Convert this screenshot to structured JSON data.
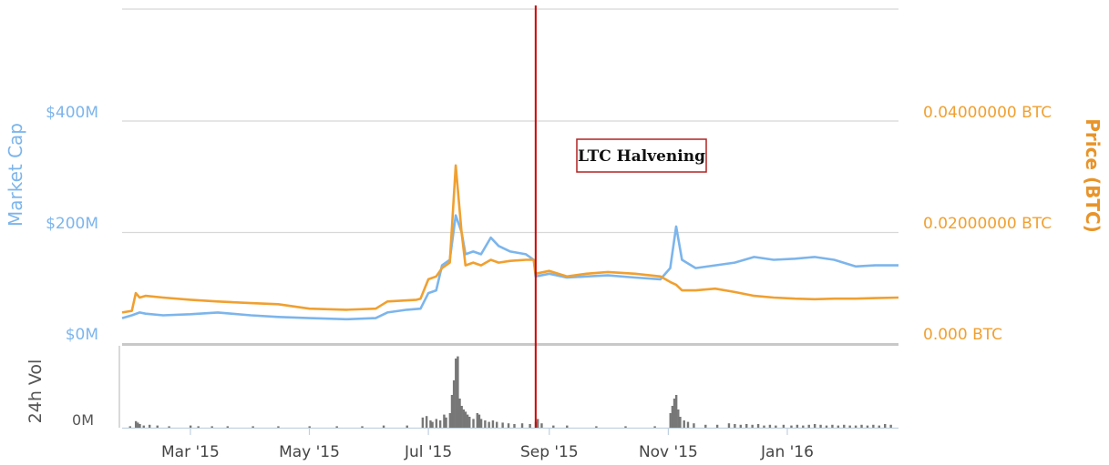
{
  "chart_data": {
    "type": "line",
    "xlim": [
      "2015-01-25",
      "2016-02-27"
    ],
    "x_ticks": [
      {
        "label": "Mar '15",
        "date": "2015-03-01"
      },
      {
        "label": "May '15",
        "date": "2015-05-01"
      },
      {
        "label": "Jul '15",
        "date": "2015-07-01"
      },
      {
        "label": "Sep '15",
        "date": "2015-09-01"
      },
      {
        "label": "Nov '15",
        "date": "2015-11-01"
      },
      {
        "label": "Jan '16",
        "date": "2016-01-01"
      }
    ],
    "y_left": {
      "title": "Market Cap",
      "range": [
        0,
        400
      ],
      "ticks": [
        {
          "label": "$0M",
          "value": 0
        },
        {
          "label": "$200M",
          "value": 200
        },
        {
          "label": "$400M",
          "value": 400
        }
      ]
    },
    "y_right": {
      "title": "Price (BTC)",
      "range": [
        0,
        0.04
      ],
      "ticks": [
        {
          "label": "0.000 BTC",
          "value": 0
        },
        {
          "label": "0.02000000 BTC",
          "value": 0.02
        },
        {
          "label": "0.04000000 BTC",
          "value": 0.04
        }
      ]
    },
    "y_volume": {
      "title": "24h Vol",
      "ticks": [
        {
          "label": "0M",
          "value": 0
        }
      ],
      "range": [
        0,
        100
      ]
    },
    "grid": true,
    "legend": "none",
    "annotation": {
      "label": "LTC Halvening",
      "date": "2015-08-25"
    },
    "series": [
      {
        "axis": "left",
        "color": "#7cb5ec",
        "points": [
          [
            "2015-01-25",
            45
          ],
          [
            "2015-01-30",
            50
          ],
          [
            "2015-02-03",
            55
          ],
          [
            "2015-02-06",
            53
          ],
          [
            "2015-02-15",
            50
          ],
          [
            "2015-03-01",
            52
          ],
          [
            "2015-03-15",
            55
          ],
          [
            "2015-03-22",
            53
          ],
          [
            "2015-04-01",
            50
          ],
          [
            "2015-04-15",
            47
          ],
          [
            "2015-05-01",
            45
          ],
          [
            "2015-05-20",
            43
          ],
          [
            "2015-06-04",
            45
          ],
          [
            "2015-06-10",
            55
          ],
          [
            "2015-06-20",
            60
          ],
          [
            "2015-06-27",
            62
          ],
          [
            "2015-07-01",
            90
          ],
          [
            "2015-07-05",
            95
          ],
          [
            "2015-07-08",
            140
          ],
          [
            "2015-07-12",
            150
          ],
          [
            "2015-07-15",
            230
          ],
          [
            "2015-07-18",
            200
          ],
          [
            "2015-07-20",
            160
          ],
          [
            "2015-07-24",
            165
          ],
          [
            "2015-07-28",
            160
          ],
          [
            "2015-08-02",
            190
          ],
          [
            "2015-08-06",
            175
          ],
          [
            "2015-08-12",
            165
          ],
          [
            "2015-08-20",
            160
          ],
          [
            "2015-08-24",
            150
          ],
          [
            "2015-08-25",
            120
          ],
          [
            "2015-09-01",
            125
          ],
          [
            "2015-09-10",
            118
          ],
          [
            "2015-09-20",
            120
          ],
          [
            "2015-10-01",
            122
          ],
          [
            "2015-10-15",
            118
          ],
          [
            "2015-10-28",
            115
          ],
          [
            "2015-11-02",
            135
          ],
          [
            "2015-11-05",
            210
          ],
          [
            "2015-11-08",
            150
          ],
          [
            "2015-11-15",
            135
          ],
          [
            "2015-11-25",
            140
          ],
          [
            "2015-12-05",
            145
          ],
          [
            "2015-12-15",
            155
          ],
          [
            "2015-12-25",
            150
          ],
          [
            "2016-01-05",
            152
          ],
          [
            "2016-01-15",
            155
          ],
          [
            "2016-01-25",
            150
          ],
          [
            "2016-02-05",
            138
          ],
          [
            "2016-02-15",
            140
          ],
          [
            "2016-02-27",
            140
          ]
        ]
      },
      {
        "axis": "right",
        "color": "#f0a030",
        "points": [
          [
            "2015-01-25",
            0.0055
          ],
          [
            "2015-01-30",
            0.0058
          ],
          [
            "2015-02-01",
            0.009
          ],
          [
            "2015-02-03",
            0.0082
          ],
          [
            "2015-02-06",
            0.0085
          ],
          [
            "2015-02-15",
            0.0082
          ],
          [
            "2015-03-01",
            0.0078
          ],
          [
            "2015-03-15",
            0.0075
          ],
          [
            "2015-04-01",
            0.0072
          ],
          [
            "2015-04-15",
            0.007
          ],
          [
            "2015-05-01",
            0.0062
          ],
          [
            "2015-05-20",
            0.006
          ],
          [
            "2015-06-04",
            0.0062
          ],
          [
            "2015-06-10",
            0.0075
          ],
          [
            "2015-06-25",
            0.0078
          ],
          [
            "2015-06-27",
            0.008
          ],
          [
            "2015-07-01",
            0.0115
          ],
          [
            "2015-07-05",
            0.012
          ],
          [
            "2015-07-08",
            0.0135
          ],
          [
            "2015-07-12",
            0.0145
          ],
          [
            "2015-07-15",
            0.032
          ],
          [
            "2015-07-18",
            0.02
          ],
          [
            "2015-07-20",
            0.014
          ],
          [
            "2015-07-24",
            0.0145
          ],
          [
            "2015-07-28",
            0.014
          ],
          [
            "2015-08-02",
            0.015
          ],
          [
            "2015-08-06",
            0.0145
          ],
          [
            "2015-08-12",
            0.0148
          ],
          [
            "2015-08-20",
            0.015
          ],
          [
            "2015-08-24",
            0.015
          ],
          [
            "2015-08-25",
            0.0125
          ],
          [
            "2015-09-01",
            0.013
          ],
          [
            "2015-09-10",
            0.012
          ],
          [
            "2015-09-20",
            0.0125
          ],
          [
            "2015-10-01",
            0.0128
          ],
          [
            "2015-10-15",
            0.0125
          ],
          [
            "2015-10-28",
            0.012
          ],
          [
            "2015-11-02",
            0.011
          ],
          [
            "2015-11-05",
            0.0105
          ],
          [
            "2015-11-08",
            0.0095
          ],
          [
            "2015-11-15",
            0.0095
          ],
          [
            "2015-11-25",
            0.0098
          ],
          [
            "2015-12-05",
            0.0092
          ],
          [
            "2015-12-15",
            0.0085
          ],
          [
            "2015-12-25",
            0.0082
          ],
          [
            "2016-01-05",
            0.008
          ],
          [
            "2016-01-15",
            0.0079
          ],
          [
            "2016-01-25",
            0.008
          ],
          [
            "2016-02-05",
            0.008
          ],
          [
            "2016-02-15",
            0.0081
          ],
          [
            "2016-02-27",
            0.0082
          ]
        ]
      }
    ],
    "volume": [
      [
        "2015-01-29",
        2
      ],
      [
        "2015-02-01",
        9
      ],
      [
        "2015-02-02",
        7
      ],
      [
        "2015-02-03",
        5
      ],
      [
        "2015-02-05",
        3
      ],
      [
        "2015-02-08",
        4
      ],
      [
        "2015-02-12",
        3
      ],
      [
        "2015-02-18",
        2
      ],
      [
        "2015-03-01",
        3
      ],
      [
        "2015-03-05",
        2
      ],
      [
        "2015-03-12",
        2
      ],
      [
        "2015-03-20",
        2
      ],
      [
        "2015-04-02",
        2
      ],
      [
        "2015-04-15",
        2
      ],
      [
        "2015-05-01",
        2
      ],
      [
        "2015-05-15",
        2
      ],
      [
        "2015-05-28",
        2
      ],
      [
        "2015-06-08",
        3
      ],
      [
        "2015-06-20",
        3
      ],
      [
        "2015-06-28",
        14
      ],
      [
        "2015-06-30",
        16
      ],
      [
        "2015-07-02",
        10
      ],
      [
        "2015-07-03",
        8
      ],
      [
        "2015-07-05",
        12
      ],
      [
        "2015-07-07",
        10
      ],
      [
        "2015-07-09",
        18
      ],
      [
        "2015-07-10",
        14
      ],
      [
        "2015-07-12",
        20
      ],
      [
        "2015-07-13",
        45
      ],
      [
        "2015-07-14",
        65
      ],
      [
        "2015-07-15",
        95
      ],
      [
        "2015-07-16",
        98
      ],
      [
        "2015-07-17",
        40
      ],
      [
        "2015-07-18",
        30
      ],
      [
        "2015-07-19",
        25
      ],
      [
        "2015-07-20",
        22
      ],
      [
        "2015-07-21",
        18
      ],
      [
        "2015-07-22",
        15
      ],
      [
        "2015-07-24",
        12
      ],
      [
        "2015-07-26",
        20
      ],
      [
        "2015-07-27",
        18
      ],
      [
        "2015-07-28",
        12
      ],
      [
        "2015-07-30",
        10
      ],
      [
        "2015-08-01",
        8
      ],
      [
        "2015-08-03",
        10
      ],
      [
        "2015-08-05",
        8
      ],
      [
        "2015-08-08",
        7
      ],
      [
        "2015-08-11",
        6
      ],
      [
        "2015-08-14",
        5
      ],
      [
        "2015-08-18",
        6
      ],
      [
        "2015-08-22",
        5
      ],
      [
        "2015-08-25",
        8
      ],
      [
        "2015-08-26",
        12
      ],
      [
        "2015-08-28",
        6
      ],
      [
        "2015-09-03",
        3
      ],
      [
        "2015-09-10",
        3
      ],
      [
        "2015-09-25",
        2
      ],
      [
        "2015-10-10",
        2
      ],
      [
        "2015-10-25",
        2
      ],
      [
        "2015-11-02",
        20
      ],
      [
        "2015-11-03",
        30
      ],
      [
        "2015-11-04",
        40
      ],
      [
        "2015-11-05",
        45
      ],
      [
        "2015-11-06",
        25
      ],
      [
        "2015-11-07",
        15
      ],
      [
        "2015-11-09",
        10
      ],
      [
        "2015-11-11",
        8
      ],
      [
        "2015-11-14",
        6
      ],
      [
        "2015-11-20",
        4
      ],
      [
        "2015-11-26",
        4
      ],
      [
        "2015-12-02",
        6
      ],
      [
        "2015-12-05",
        5
      ],
      [
        "2015-12-08",
        4
      ],
      [
        "2015-12-11",
        5
      ],
      [
        "2015-12-14",
        4
      ],
      [
        "2015-12-17",
        5
      ],
      [
        "2015-12-20",
        3
      ],
      [
        "2015-12-23",
        4
      ],
      [
        "2015-12-26",
        3
      ],
      [
        "2015-12-30",
        4
      ],
      [
        "2016-01-03",
        3
      ],
      [
        "2016-01-06",
        4
      ],
      [
        "2016-01-09",
        3
      ],
      [
        "2016-01-12",
        4
      ],
      [
        "2016-01-15",
        5
      ],
      [
        "2016-01-18",
        4
      ],
      [
        "2016-01-21",
        3
      ],
      [
        "2016-01-24",
        4
      ],
      [
        "2016-01-27",
        3
      ],
      [
        "2016-01-30",
        4
      ],
      [
        "2016-02-02",
        3
      ],
      [
        "2016-02-05",
        3
      ],
      [
        "2016-02-08",
        4
      ],
      [
        "2016-02-11",
        3
      ],
      [
        "2016-02-14",
        4
      ],
      [
        "2016-02-17",
        3
      ],
      [
        "2016-02-20",
        5
      ],
      [
        "2016-02-23",
        4
      ]
    ]
  }
}
